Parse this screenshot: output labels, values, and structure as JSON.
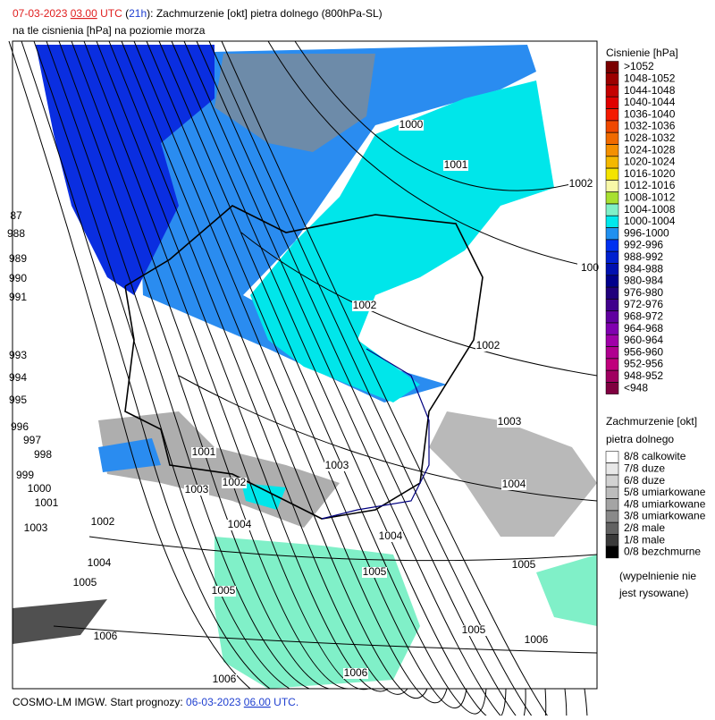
{
  "header": {
    "line1": {
      "date": "07-03-2023",
      "time": "03.00",
      "utc": "UTC",
      "open": "(",
      "lead": "21h",
      "rest": "): Zachmurzenie [okt] pietra dolnego (800hPa-SL)"
    },
    "line2": "na tle cisnienia [hPa] na poziomie morza"
  },
  "pressure_legend": {
    "title": "Cisnienie [hPa]",
    "items": [
      {
        "label": ">1052",
        "color": "#7a0000"
      },
      {
        "label": "1048-1052",
        "color": "#9c0000"
      },
      {
        "label": "1044-1048",
        "color": "#c40000"
      },
      {
        "label": "1040-1044",
        "color": "#e00000"
      },
      {
        "label": "1036-1040",
        "color": "#f41a00"
      },
      {
        "label": "1032-1036",
        "color": "#f04800"
      },
      {
        "label": "1028-1032",
        "color": "#f06a00"
      },
      {
        "label": "1024-1028",
        "color": "#f49000"
      },
      {
        "label": "1020-1024",
        "color": "#f4b800"
      },
      {
        "label": "1016-1020",
        "color": "#f4e400"
      },
      {
        "label": "1012-1016",
        "color": "#f8f8a8"
      },
      {
        "label": "1008-1012",
        "color": "#a8e030"
      },
      {
        "label": "1004-1008",
        "color": "#80f0c8"
      },
      {
        "label": "1000-1004",
        "color": "#00e8ec"
      },
      {
        "label": "996-1000",
        "color": "#2090f0"
      },
      {
        "label": "992-996",
        "color": "#0030f0"
      },
      {
        "label": "988-992",
        "color": "#0020d0"
      },
      {
        "label": "984-988",
        "color": "#0010b0"
      },
      {
        "label": "980-984",
        "color": "#00008c"
      },
      {
        "label": "976-980",
        "color": "#20007c"
      },
      {
        "label": "972-976",
        "color": "#40008c"
      },
      {
        "label": "968-972",
        "color": "#6000a0"
      },
      {
        "label": "964-968",
        "color": "#8000b0"
      },
      {
        "label": "960-964",
        "color": "#a000a8"
      },
      {
        "label": "956-960",
        "color": "#b00090"
      },
      {
        "label": "952-956",
        "color": "#c0007c"
      },
      {
        "label": "948-952",
        "color": "#a00060"
      },
      {
        "label": "<948",
        "color": "#800040"
      }
    ]
  },
  "cloud_legend": {
    "title": [
      "Zachmurzenie [okt]",
      "pietra dolnego"
    ],
    "items": [
      {
        "label": "8/8 calkowite",
        "color": "#ffffff"
      },
      {
        "label": "7/8 duze",
        "color": "#e8e8e8"
      },
      {
        "label": "6/8 duze",
        "color": "#d2d2d2"
      },
      {
        "label": "5/8 umiarkowane",
        "color": "#bcbcbc"
      },
      {
        "label": "4/8 umiarkowane",
        "color": "#a4a4a4"
      },
      {
        "label": "3/8 umiarkowane",
        "color": "#8a8a8a"
      },
      {
        "label": "2/8 male",
        "color": "#626262"
      },
      {
        "label": "1/8 male",
        "color": "#3a3a3a"
      },
      {
        "label": "0/8 bezchmurne",
        "color": "#000000"
      }
    ],
    "note": [
      "(wypelnienie nie",
      "jest rysowane)"
    ]
  },
  "isobar_labels": [
    "1000",
    "1001",
    "1002",
    "87",
    "988",
    "989",
    "990",
    "991",
    "1002",
    "100",
    "1002",
    "993",
    "994",
    "995",
    "1003",
    "996",
    "997",
    "998",
    "1001",
    "1003",
    "999",
    "1000",
    "1003",
    "1002",
    "1004",
    "1001",
    "1002",
    "1004",
    "1003",
    "1004",
    "1004",
    "1005",
    "1005",
    "1005",
    "1005",
    "1006",
    "1005",
    "1006",
    "1006",
    "1006"
  ],
  "footer": {
    "model": "COSMO-LM IMGW. Start prognozy: ",
    "date": "06-03-2023",
    "time": "06.00",
    "utc": "UTC."
  }
}
